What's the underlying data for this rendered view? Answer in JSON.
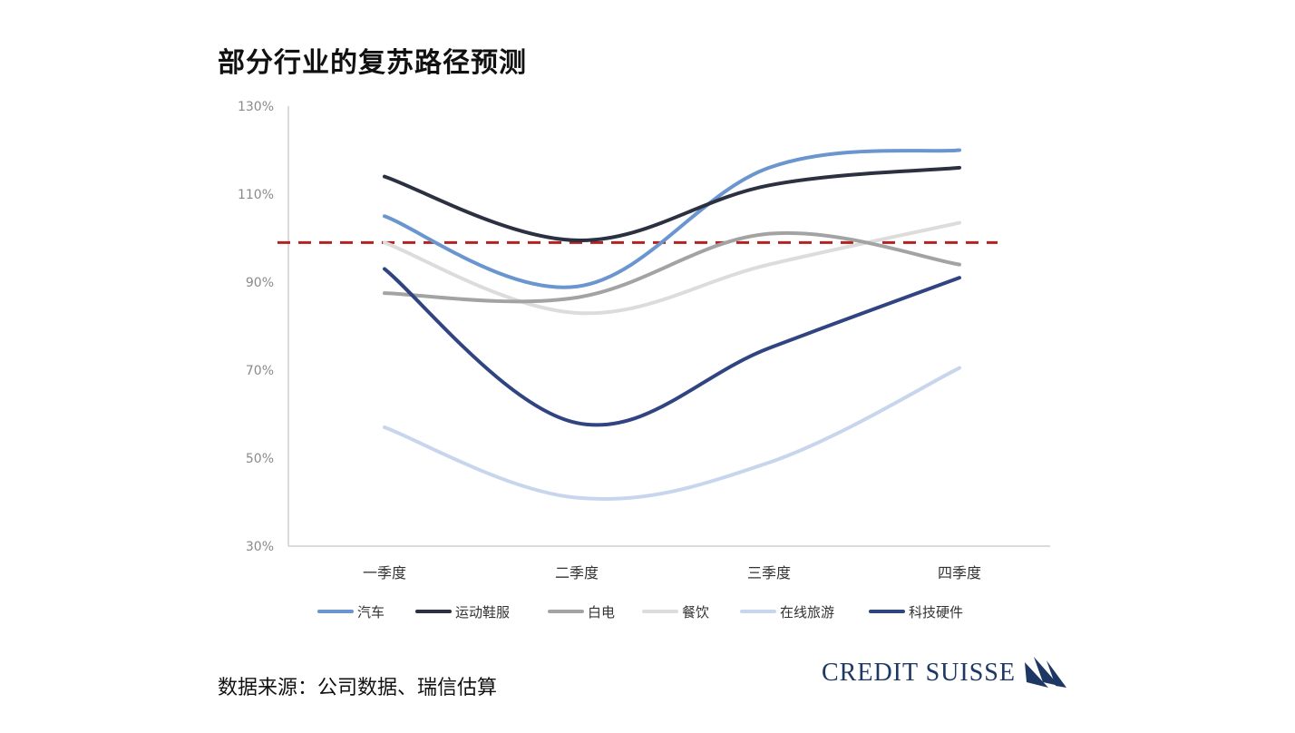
{
  "title": "部分行业的复苏路径预测",
  "source": "数据来源：公司数据、瑞信估算",
  "brand": {
    "text": "CREDIT SUISSE",
    "logo_icon": "sails-logo-icon",
    "color": "#1e3764"
  },
  "chart_data": {
    "type": "line",
    "title": "部分行业的复苏路径预测",
    "xlabel": "",
    "ylabel": "",
    "categories": [
      "一季度",
      "二季度",
      "三季度",
      "四季度"
    ],
    "ylim": [
      30,
      130
    ],
    "yticks": [
      30,
      50,
      70,
      90,
      110,
      130
    ],
    "yticklabels": [
      "30%",
      "50%",
      "70%",
      "90%",
      "110%",
      "130%"
    ],
    "grid": false,
    "legend_position": "bottom",
    "reference_line": {
      "value": 99,
      "color": "#b22222",
      "style": "dashed"
    },
    "series": [
      {
        "name": "汽车",
        "color": "#6a95cf",
        "values": [
          105,
          89,
          116,
          120
        ]
      },
      {
        "name": "运动鞋服",
        "color": "#2b3140",
        "values": [
          114,
          99.5,
          112,
          116
        ]
      },
      {
        "name": "白电",
        "color": "#a3a3a3",
        "values": [
          87.5,
          86.5,
          101,
          94
        ]
      },
      {
        "name": "餐饮",
        "color": "#dcdcdc",
        "values": [
          99,
          83,
          94,
          103.5
        ]
      },
      {
        "name": "在线旅游",
        "color": "#c7d6ec",
        "values": [
          57,
          41,
          49,
          70.5
        ]
      },
      {
        "name": "科技硬件",
        "color": "#2f4480",
        "values": [
          93,
          58,
          75,
          91
        ]
      }
    ]
  }
}
